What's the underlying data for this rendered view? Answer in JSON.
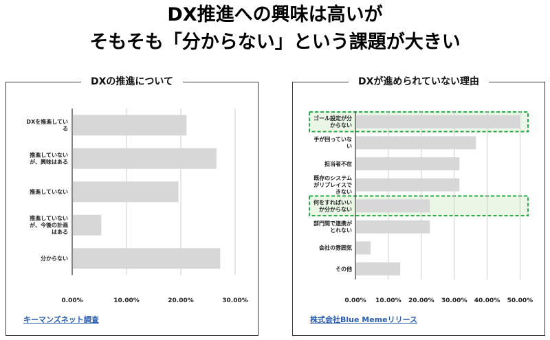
{
  "headline": {
    "line1": "DX推進への興味は高いが",
    "line2": "そもそも「分からない」という課題が大きい"
  },
  "colors": {
    "bar": "#d7d7d7",
    "grid": "#cccccc",
    "axis": "#333333",
    "highlight_border": "#2eaa4a",
    "highlight_fill": "#eaf6e6",
    "link": "#2a5db0"
  },
  "chart_data": [
    {
      "type": "bar",
      "orientation": "horizontal",
      "title": "DXの推進について",
      "categories": [
        "DXを推進している",
        "推進していないが、興味はある",
        "推進していない",
        "推進していないが、今後の計画はある",
        "分からない"
      ],
      "category_label_lines": [
        [
          "DXを推進してい",
          "る"
        ],
        [
          "推進していない",
          "が、興味はある"
        ],
        [
          "推進していない"
        ],
        [
          "推進していない",
          "が、今後の計画",
          "はある"
        ],
        [
          "分からない"
        ]
      ],
      "values": [
        0.21,
        0.265,
        0.195,
        0.053,
        0.272
      ],
      "xlim": [
        0,
        0.3
      ],
      "ticks": [
        0,
        0.1,
        0.2,
        0.3
      ],
      "tick_labels": [
        "0.00%",
        "10.00%",
        "20.00%",
        "30.00%"
      ],
      "grid": true,
      "source": "キーマンズネット調査"
    },
    {
      "type": "bar",
      "orientation": "horizontal",
      "title": "DXが進められていない理由",
      "categories": [
        "ゴール設定が分からない",
        "手が回っていない",
        "担当者不在",
        "既存のシステムがリプレイスできない",
        "何をすればいいか分からない",
        "部門間で連携がとれない",
        "会社の雰囲気",
        "その他"
      ],
      "category_label_lines": [
        [
          "ゴール設定が分",
          "からない"
        ],
        [
          "手が回っていな",
          "い"
        ],
        [
          "担当者不在"
        ],
        [
          "既存のシステム",
          "がリプレイスで",
          "きない"
        ],
        [
          "何をすればいい",
          "か分からない"
        ],
        [
          "部門間で連携が",
          "とれない"
        ],
        [
          "会社の雰囲気"
        ],
        [
          "その他"
        ]
      ],
      "values": [
        0.5,
        0.365,
        0.315,
        0.315,
        0.225,
        0.225,
        0.045,
        0.135
      ],
      "highlighted": [
        0,
        4
      ],
      "xlim": [
        0,
        0.52
      ],
      "ticks": [
        0,
        0.1,
        0.2,
        0.3,
        0.4,
        0.5
      ],
      "tick_labels": [
        "0.00%",
        "10.00%",
        "20.00%",
        "30.00%",
        "40.00%",
        "50.00%"
      ],
      "grid": true,
      "source": "株式会社Blue Memeリリース"
    }
  ]
}
